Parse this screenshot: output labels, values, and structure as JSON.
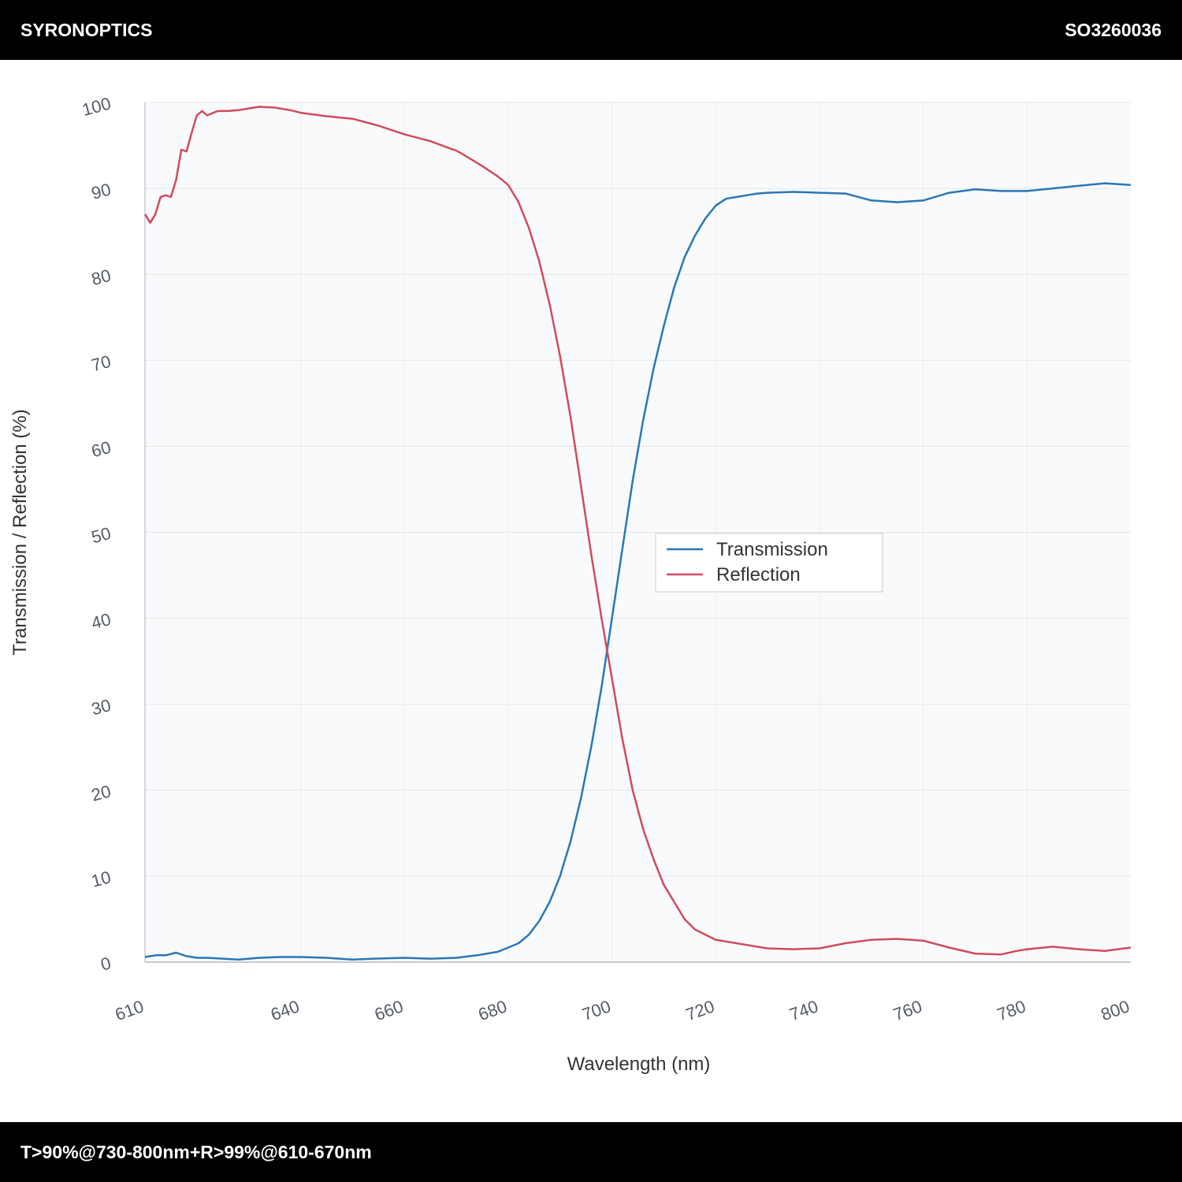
{
  "header": {
    "brand": "SYRONOPTICS",
    "part_number": "SO3260036"
  },
  "footer": {
    "spec": "T>90%@730-800nm+R>99%@610-670nm"
  },
  "colors": {
    "transmission": "#2a77b5",
    "reflection": "#d14a5e",
    "plot_bg": "#f9fafb",
    "grid": "#e3e5e8"
  },
  "chart_data": {
    "type": "line",
    "title": "",
    "xlabel": "Wavelength (nm)",
    "ylabel": "Transmission / Reflection (%)",
    "xlim": [
      610,
      800
    ],
    "ylim": [
      0,
      100
    ],
    "x_ticks": [
      610,
      640,
      660,
      680,
      700,
      720,
      740,
      760,
      780,
      800
    ],
    "y_ticks": [
      0,
      10,
      20,
      30,
      40,
      50,
      60,
      70,
      80,
      90,
      100
    ],
    "grid": true,
    "legend_position": "center",
    "series": [
      {
        "name": "Transmission",
        "x": [
          610,
          612,
          614,
          616,
          618,
          620,
          622,
          625,
          628,
          632,
          636,
          640,
          645,
          650,
          654,
          660,
          665,
          670,
          674,
          678,
          680,
          682,
          684,
          686,
          688,
          690,
          692,
          694,
          696,
          698,
          700,
          702,
          704,
          706,
          708,
          710,
          712,
          714,
          716,
          718,
          720,
          722,
          724,
          726,
          728,
          730,
          735,
          740,
          745,
          750,
          755,
          760,
          765,
          770,
          775,
          780,
          785,
          790,
          795,
          800
        ],
        "values": [
          0.6,
          0.8,
          0.8,
          1.1,
          0.7,
          0.5,
          0.5,
          0.4,
          0.3,
          0.5,
          0.6,
          0.6,
          0.5,
          0.3,
          0.4,
          0.5,
          0.4,
          0.5,
          0.8,
          1.2,
          1.7,
          2.2,
          3.2,
          4.8,
          7.0,
          10.0,
          14.0,
          19.0,
          25.0,
          32.0,
          40.0,
          48.0,
          56.0,
          63.0,
          69.0,
          74.0,
          78.5,
          82.0,
          84.5,
          86.5,
          88.0,
          88.8,
          89.0,
          89.2,
          89.4,
          89.5,
          89.6,
          89.5,
          89.4,
          88.6,
          88.4,
          88.6,
          89.5,
          89.9,
          89.7,
          89.7,
          90.0,
          90.3,
          90.6,
          90.4
        ]
      },
      {
        "name": "Reflection",
        "x": [
          610,
          611,
          612,
          613,
          614,
          615,
          616,
          617,
          618,
          619,
          620,
          621,
          622,
          624,
          626,
          628,
          630,
          632,
          635,
          638,
          640,
          645,
          650,
          655,
          660,
          665,
          669,
          670,
          672,
          675,
          678,
          680,
          682,
          684,
          686,
          688,
          690,
          692,
          694,
          696,
          698,
          700,
          702,
          704,
          706,
          708,
          710,
          712,
          714,
          716,
          718,
          720,
          722,
          724,
          726,
          728,
          730,
          735,
          740,
          745,
          750,
          755,
          760,
          765,
          770,
          775,
          778,
          780,
          785,
          790,
          795,
          800
        ],
        "values": [
          87.0,
          86.0,
          87.0,
          89.0,
          89.2,
          89.0,
          91.0,
          94.5,
          94.3,
          96.5,
          98.5,
          99.0,
          98.5,
          99.0,
          99.0,
          99.1,
          99.3,
          99.5,
          99.4,
          99.1,
          98.8,
          98.4,
          98.1,
          97.3,
          96.3,
          95.5,
          94.6,
          94.4,
          93.7,
          92.6,
          91.4,
          90.4,
          88.4,
          85.4,
          81.5,
          76.5,
          70.5,
          63.5,
          55.5,
          47.5,
          40.0,
          33.0,
          26.0,
          20.0,
          15.5,
          12.0,
          9.0,
          7.0,
          5.0,
          3.8,
          3.2,
          2.6,
          2.4,
          2.2,
          2.0,
          1.8,
          1.6,
          1.5,
          1.6,
          2.2,
          2.6,
          2.7,
          2.5,
          1.7,
          1.0,
          0.9,
          1.3,
          1.5,
          1.8,
          1.5,
          1.3,
          1.7
        ]
      }
    ]
  }
}
